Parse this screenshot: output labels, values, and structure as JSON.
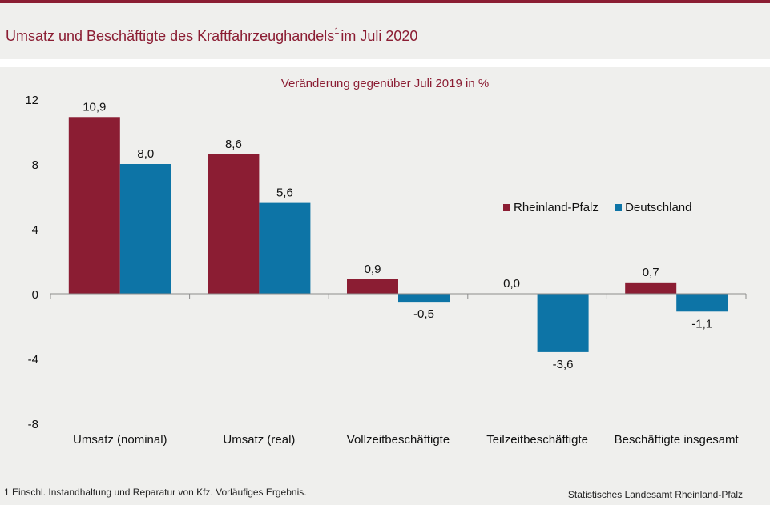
{
  "header": {
    "title": "Umsatz und Beschäftigte des Kraftfahrzeughandels",
    "title_footnote_mark": "1",
    "title_suffix": "im Juli 2020"
  },
  "footer": {
    "footnote": "1 Einschl. Instandhaltung und Reparatur von Kfz. Vorläufiges Ergebnis.",
    "source": "Statistisches Landesamt Rheinland-Pfalz"
  },
  "colors": {
    "rheinland_pfalz": "#8b1d33",
    "deutschland": "#0d74a6",
    "accent": "#8b1d33"
  },
  "chart_data": {
    "type": "bar",
    "subtitle": "Veränderung gegenüber Juli 2019 in %",
    "categories": [
      "Umsatz (nominal)",
      "Umsatz (real)",
      "Vollzeitbeschäftigte",
      "Teilzeitbeschäftigte",
      "Beschäftigte insgesamt"
    ],
    "series": [
      {
        "name": "Rheinland-Pfalz",
        "values": [
          10.9,
          8.6,
          0.9,
          0.0,
          0.7
        ],
        "labels": [
          "10,9",
          "8,6",
          "0,9",
          "0,0",
          "0,7"
        ]
      },
      {
        "name": "Deutschland",
        "values": [
          8.0,
          5.6,
          -0.5,
          -3.6,
          -1.1
        ],
        "labels": [
          "8,0",
          "5,6",
          "-0,5",
          "-3,6",
          "-1,1"
        ]
      }
    ],
    "ylim": [
      -8,
      12
    ],
    "yticks": [
      12,
      8,
      4,
      0,
      -4,
      -8
    ],
    "grid": false,
    "legend": "right"
  }
}
